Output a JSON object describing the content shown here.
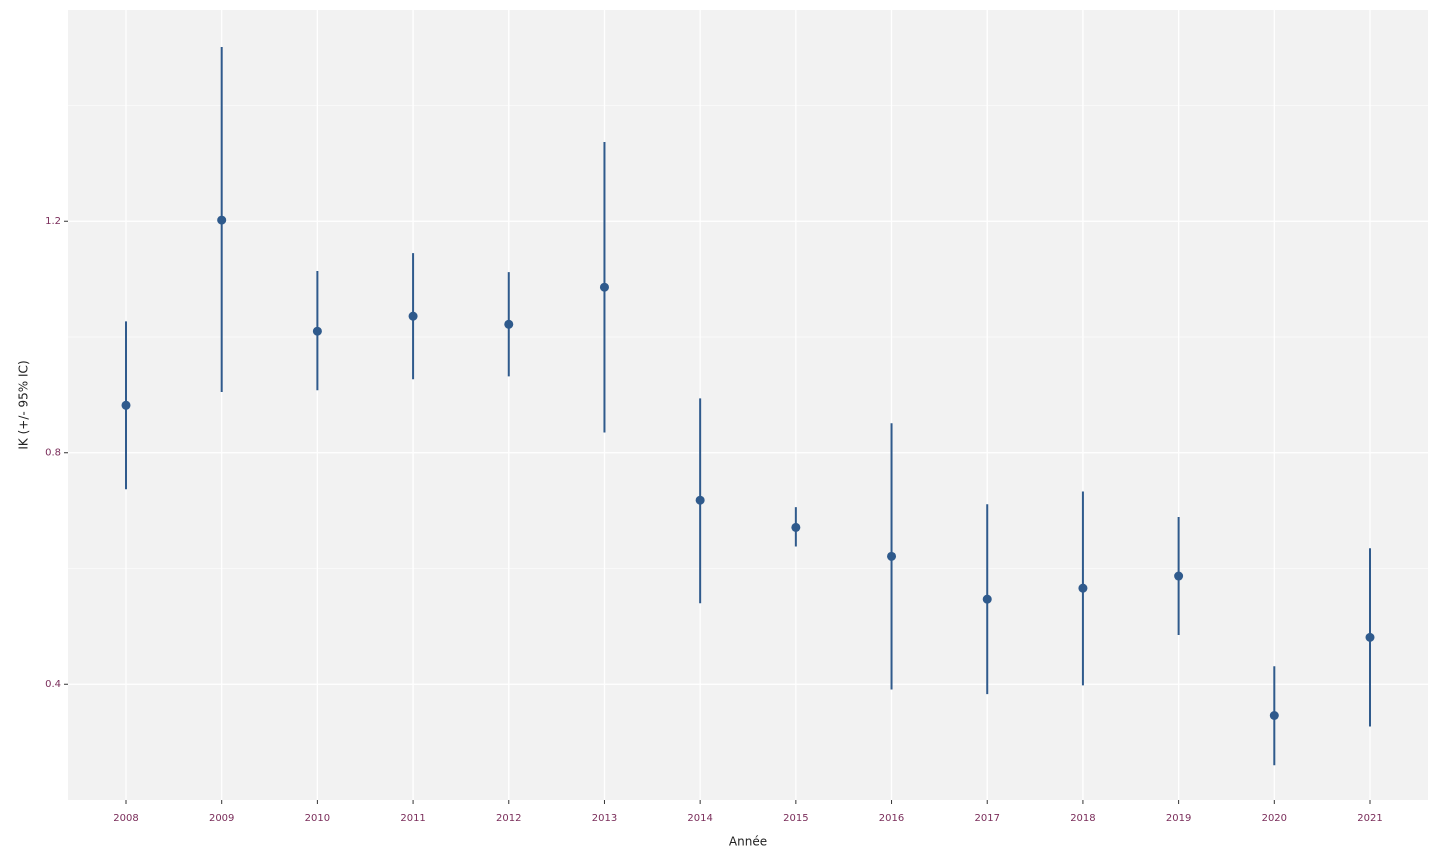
{
  "chart_data": {
    "type": "pointrange",
    "x_label": "Année",
    "y_label": "IK (+/- 95% IC)",
    "categories": [
      "2008",
      "2009",
      "2010",
      "2011",
      "2012",
      "2013",
      "2014",
      "2015",
      "2016",
      "2017",
      "2018",
      "2019",
      "2020",
      "2021"
    ],
    "series": [
      {
        "color": "#2f5a8c",
        "values": [
          0.882,
          1.202,
          1.01,
          1.036,
          1.022,
          1.086,
          0.718,
          0.671,
          0.621,
          0.547,
          0.566,
          0.587,
          0.346,
          0.481
        ],
        "lower": [
          0.737,
          0.905,
          0.908,
          0.927,
          0.932,
          0.835,
          0.54,
          0.638,
          0.391,
          0.383,
          0.398,
          0.485,
          0.26,
          0.327
        ],
        "upper": [
          1.027,
          1.501,
          1.114,
          1.145,
          1.112,
          1.337,
          0.894,
          0.706,
          0.851,
          0.711,
          0.733,
          0.689,
          0.431,
          0.635
        ]
      }
    ],
    "ylim": [
      0.2,
      1.565
    ],
    "yticks": [
      0.4,
      0.8,
      1.2
    ],
    "yminor": [
      0.6,
      1.0,
      1.4
    ],
    "grid": true
  }
}
